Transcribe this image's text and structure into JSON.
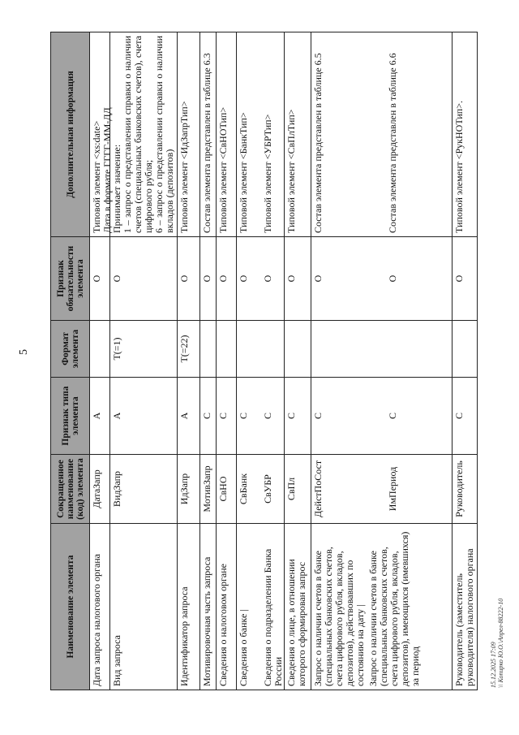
{
  "page_number": "5",
  "table": {
    "headers": [
      "Наименование элемента",
      "Сокращенное наименование (код) элемента",
      "Признак типа элемента",
      "Формат элемента",
      "Признак обязательности элемента",
      "Дополнительная информация"
    ],
    "rows": [
      {
        "items": [
          {
            "name": "Дата запроса налогового органа",
            "code": "ДатаЗапр",
            "type": "А",
            "format": "",
            "req": "О",
            "info": [
              "Типовой элемент <xs:date>",
              "Дата в формате ГГГГ-ММ-ДД"
            ]
          }
        ]
      },
      {
        "items": [
          {
            "name": "Вид запроса",
            "code": "ВидЗапр",
            "type": "А",
            "format": "Т(=1)",
            "req": "О",
            "info": [
              "Принимает значение:",
              "1 – запрос о представлении справки о наличии счетов (специальных банковских счетов), счета цифрового рубля;",
              "6 – запрос о представлении справки о наличии вкладов (депозитов)"
            ]
          }
        ]
      },
      {
        "items": [
          {
            "name": "Идентификатор запроса",
            "code": "ИдЗапр",
            "type": "А",
            "format": "Т(=22)",
            "req": "О",
            "info": [
              "Типовой элемент <ИдЗапрТип>"
            ]
          }
        ]
      },
      {
        "items": [
          {
            "name": "Мотивировочная часть запроса",
            "code": "МотивЗапр",
            "type": "С",
            "format": "",
            "req": "О",
            "info": [
              "Состав элемента представлен в таблице 6.3"
            ]
          }
        ]
      },
      {
        "items": [
          {
            "name": "Сведения о налоговом органе",
            "code": "СвНО",
            "type": "С",
            "format": "",
            "req": "О",
            "info": [
              "Типовой элемент <СвНОТип>"
            ]
          }
        ]
      },
      {
        "items": [
          {
            "name": "Сведения о банке |",
            "code": "СвБанк",
            "type": "С",
            "format": "",
            "req": "О",
            "info": [
              "Типовой элемент <БанкТип>"
            ]
          },
          {
            "name": "Сведения о подразделении Банка России",
            "code": "СвУБР",
            "type": "С",
            "format": "",
            "req": "О",
            "info": [
              "Типовой элемент <УБРТип>"
            ]
          }
        ]
      },
      {
        "items": [
          {
            "name": "Сведения о лице, в отношении которого сформирован запрос",
            "code": "СвПл",
            "type": "С",
            "format": "",
            "req": "О",
            "info": [
              "Типовой элемент <СвПлТип>"
            ]
          }
        ]
      },
      {
        "items": [
          {
            "name": "Запрос о наличии счетов в банке (специальных банковских счетов, счета цифрового рубля, вкладов, депозитов), действовавших по состоянию на дату |",
            "code": "ДейстПоСост",
            "type": "С",
            "format": "",
            "req": "О",
            "info": [
              "Состав элемента представлен в таблице 6.5"
            ]
          },
          {
            "name": "Запрос о наличии счетов в банке (специальных банковских счетов, счета цифрового рубля, вкладов, депозитов), имеющихся (имевшихся) за период",
            "code": "ИмПериод",
            "type": "С",
            "format": "",
            "req": "О",
            "info": [
              "Состав элемента представлен в таблице 6.6"
            ]
          }
        ]
      },
      {
        "items": [
          {
            "name": "Руководитель (заместитель руководителя) налогового органа",
            "code": "Руководитель",
            "type": "С",
            "format": "",
            "req": "О",
            "info": [
              "Типовой элемент <РукНОТип>."
            ]
          }
        ]
      }
    ]
  },
  "footer": {
    "line1": "15.12.2025 17:09",
    "line2": "\\\\ Копирко Ю.О.\\Апрел-88222-10"
  },
  "colors": {
    "header_bg": "#a2a2a2",
    "border": "#222222"
  }
}
